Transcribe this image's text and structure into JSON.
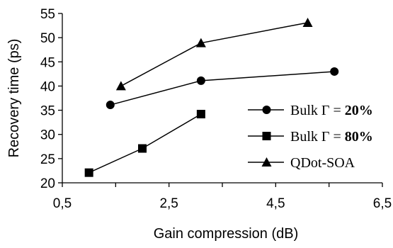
{
  "chart_data": {
    "type": "line",
    "xlabel": "Gain compression (dB)",
    "ylabel": "Recovery time (ps)",
    "xlim": [
      0.5,
      6.5
    ],
    "ylim": [
      20,
      55
    ],
    "x_ticks": [
      "0,5",
      "2,5",
      "4,5",
      "6,5"
    ],
    "y_ticks": [
      "20",
      "25",
      "30",
      "35",
      "40",
      "45",
      "50",
      "55"
    ],
    "grid": false,
    "legend_position": "right",
    "series": [
      {
        "name": "Bulk Γ = 20%",
        "name_prefix": "Bulk Γ = ",
        "name_value": "20%",
        "marker": "circle",
        "color": "#000000",
        "points": [
          [
            1.4,
            36.1
          ],
          [
            3.1,
            41.1
          ],
          [
            5.6,
            43.0
          ]
        ]
      },
      {
        "name": "Bulk Γ = 80%",
        "name_prefix": "Bulk Γ = ",
        "name_value": "80%",
        "marker": "square",
        "color": "#000000",
        "points": [
          [
            1.0,
            22.1
          ],
          [
            2.0,
            27.1
          ],
          [
            3.1,
            34.2
          ]
        ]
      },
      {
        "name": "QDot-SOA",
        "name_prefix": "QDot-SOA",
        "name_value": "",
        "marker": "triangle",
        "color": "#000000",
        "points": [
          [
            1.6,
            40.0
          ],
          [
            3.1,
            48.9
          ],
          [
            5.1,
            53.1
          ]
        ]
      }
    ]
  }
}
